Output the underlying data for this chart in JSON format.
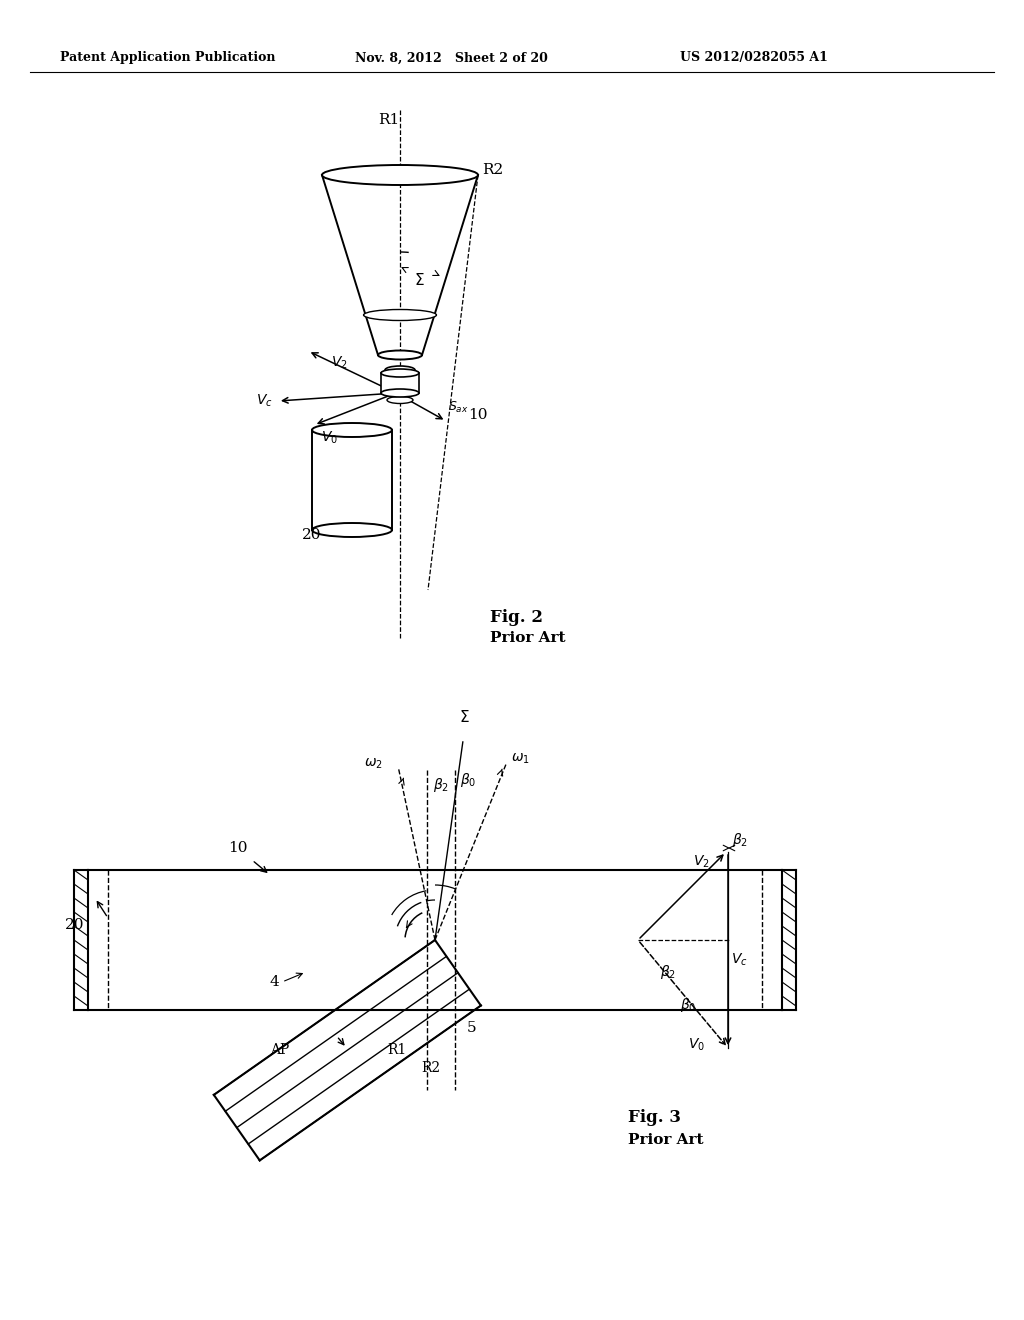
{
  "bg_color": "#ffffff",
  "header_left": "Patent Application Publication",
  "header_mid": "Nov. 8, 2012   Sheet 2 of 20",
  "header_right": "US 2012/0282055 A1"
}
